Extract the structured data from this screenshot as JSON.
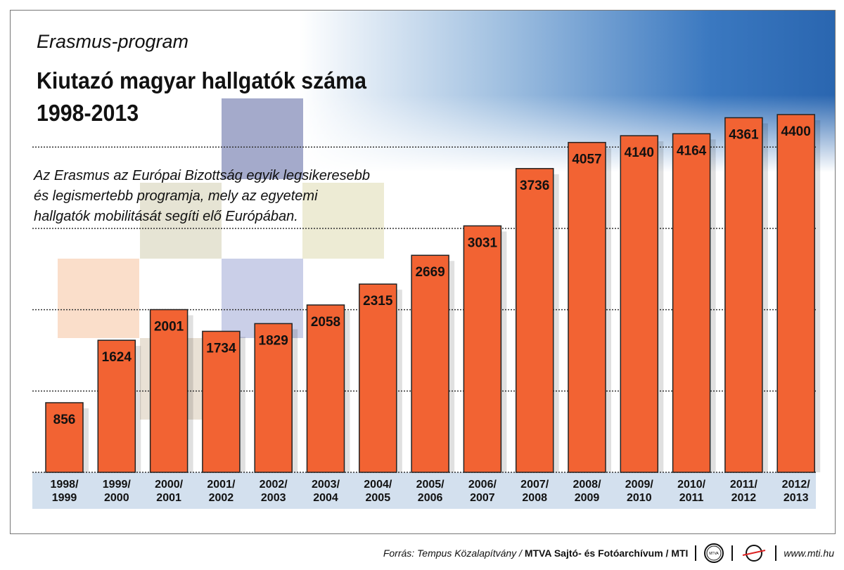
{
  "header": {
    "subtitle": "Erasmus-program",
    "title_line1": "Kiutazó magyar hallgatók száma",
    "title_line2": "1998-2013"
  },
  "description": [
    "Az Erasmus az Európai Bizottság egyik legsikeresebb",
    "és legismertebb programja, mely az egyetemi",
    "hallgatók mobilitását segíti elő Európában."
  ],
  "footer": {
    "source_prefix": "Forrás: Tempus Közalapítvány / ",
    "source_bold": "MTVA Sajtó- és Fotóarchívum / MTI",
    "logo_mtva": "MTVA",
    "url": "www.mti.hu"
  },
  "colors": {
    "bar": "#f26333",
    "axis_band": "#d3e0ee",
    "header_blue": "#2a66b0"
  },
  "chart_data": {
    "type": "bar",
    "categories": [
      "1998/\n1999",
      "1999/\n2000",
      "2000/\n2001",
      "2001/\n2002",
      "2002/\n2003",
      "2003/\n2004",
      "2004/\n2005",
      "2005/\n2006",
      "2006/\n2007",
      "2007/\n2008",
      "2008/\n2009",
      "2009/\n2010",
      "2010/\n2011",
      "2011/\n2012",
      "2012/\n2013"
    ],
    "values": [
      856,
      1624,
      2001,
      1734,
      1829,
      2058,
      2315,
      2669,
      3031,
      3736,
      4057,
      4140,
      4164,
      4361,
      4400
    ],
    "data_labels": true,
    "ylim": [
      0,
      4400
    ],
    "grid": true,
    "gridlines": [
      1000,
      2000,
      3000,
      4000
    ]
  }
}
